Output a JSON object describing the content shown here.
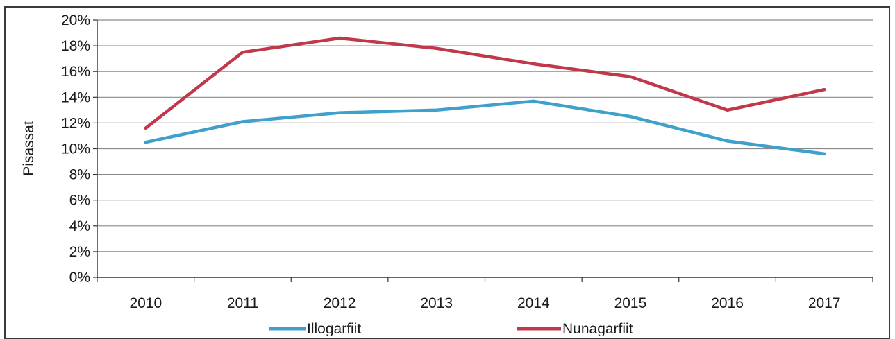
{
  "chart_data": {
    "type": "line",
    "title": "",
    "xlabel": "",
    "ylabel": "Pisassat",
    "ylim": [
      0,
      20
    ],
    "y_tick_step": 2,
    "y_tick_format": "percent",
    "grid": true,
    "legend_placement": "bottom",
    "categories": [
      "2010",
      "2011",
      "2012",
      "2013",
      "2014",
      "2015",
      "2016",
      "2017"
    ],
    "y_ticks": [
      "0%",
      "2%",
      "4%",
      "6%",
      "8%",
      "10%",
      "12%",
      "14%",
      "16%",
      "18%",
      "20%"
    ],
    "series": [
      {
        "name": "Illogarfiit",
        "color": "#3fa0cc",
        "values": [
          10.5,
          12.1,
          12.8,
          13.0,
          13.7,
          12.5,
          10.6,
          9.6
        ]
      },
      {
        "name": "Nunagarfiit",
        "color": "#c0394b",
        "values": [
          11.6,
          17.5,
          18.6,
          17.8,
          16.6,
          15.6,
          13.0,
          14.6
        ]
      }
    ]
  }
}
